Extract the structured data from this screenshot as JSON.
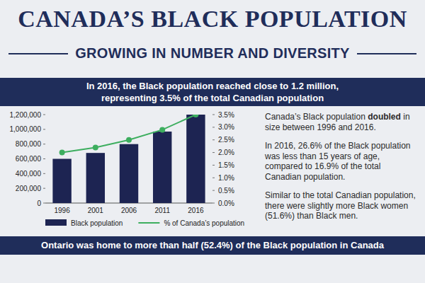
{
  "header": {
    "title": "CANADA’S BLACK POPULATION",
    "subtitle": "GROWING IN NUMBER AND DIVERSITY"
  },
  "banner": [
    "In 2016, the Black population reached close to 1.2 million,",
    "representing 3.5% of the total Canadian population"
  ],
  "facts": [
    [
      "Canada’s Black population ",
      "doubled",
      " in size between 1996 and 2016."
    ],
    [
      "In 2016, 26.6% of the Black population was less than 15 years of age, compared to 16.9% of the total Canadian population."
    ],
    [
      "Similar to the total Canadian population, there were slightly more Black women (51.6%) than Black men."
    ]
  ],
  "footer": "Ontario was home to more than half (52.4%) of the Black population in Canada",
  "chart_data": {
    "type": "bar",
    "categories": [
      "1996",
      "2001",
      "2006",
      "2011",
      "2016"
    ],
    "series": [
      {
        "name": "Black population",
        "type": "bar",
        "color": "#1d2452",
        "values": [
          600000,
          680000,
          800000,
          970000,
          1200000
        ]
      },
      {
        "name": "% of Canada’s population",
        "type": "line",
        "axis": "y2",
        "color": "#3dae5f",
        "marker": "circle",
        "values": [
          2.0,
          2.2,
          2.5,
          2.9,
          3.5
        ]
      }
    ],
    "ylim": [
      0,
      1200000
    ],
    "yticks": [
      0,
      {
        "value": 200000,
        "label": "200,000"
      },
      {
        "value": 400000,
        "label": "400,000"
      },
      {
        "value": 600000,
        "label": "600,000"
      },
      {
        "value": 800000,
        "label": "800,000"
      },
      {
        "value": 1000000,
        "label": "1,000,000"
      },
      {
        "value": 1200000,
        "label": "1,200,000"
      }
    ],
    "y2lim": [
      0,
      3.5
    ],
    "y2ticks": [
      {
        "value": 0,
        "label": "0.0%"
      },
      {
        "value": 0.5,
        "label": "0.5%"
      },
      {
        "value": 1,
        "label": "1.0%"
      },
      {
        "value": 1.5,
        "label": "1.5%"
      },
      {
        "value": 2,
        "label": "2.0%"
      },
      {
        "value": 2.5,
        "label": "2.5%"
      },
      {
        "value": 3,
        "label": "3.0%"
      },
      {
        "value": 3.5,
        "label": "3.5%"
      }
    ],
    "grid": false,
    "legend": "bottom"
  }
}
